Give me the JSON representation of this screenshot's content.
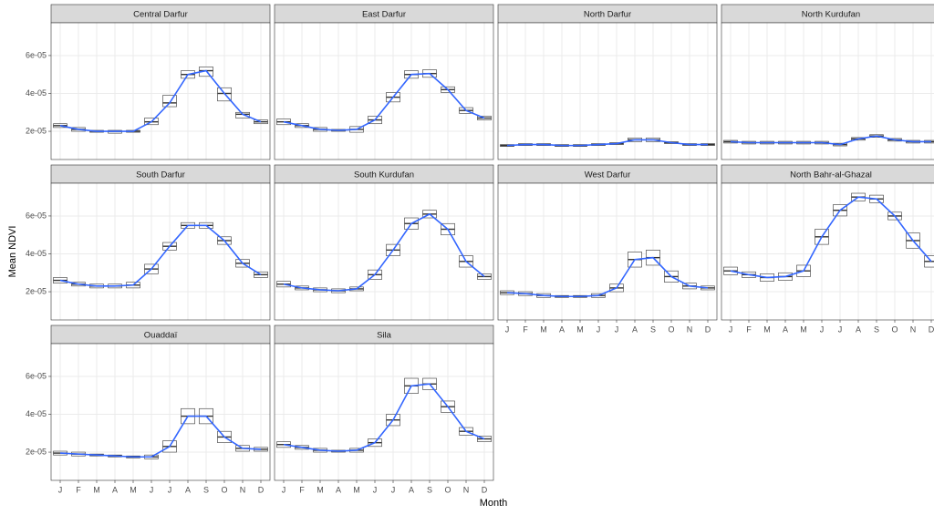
{
  "axis_labels": {
    "x": "Month",
    "y": "Mean NDVI"
  },
  "categories": [
    "J",
    "F",
    "M",
    "A",
    "M",
    "J",
    "J",
    "A",
    "S",
    "O",
    "N",
    "D"
  ],
  "ylim": [
    5.1e-06,
    7.73e-05
  ],
  "yticks": [
    {
      "value": 2e-05,
      "label": "2e-05"
    },
    {
      "value": 4e-05,
      "label": "4e-05"
    },
    {
      "value": 6e-05,
      "label": "6e-05"
    }
  ],
  "line_color": "#3366ff",
  "chart_data": [
    {
      "type": "box",
      "title": "Central Darfur",
      "median": [
        2.3e-05,
        2.1e-05,
        2e-05,
        2e-05,
        2e-05,
        2.5e-05,
        3.5e-05,
        5e-05,
        5.2e-05,
        4e-05,
        2.9e-05,
        2.5e-05
      ],
      "q1": [
        2.2e-05,
        2e-05,
        1.95e-05,
        1.9e-05,
        1.95e-05,
        2.35e-05,
        3.3e-05,
        4.8e-05,
        4.9e-05,
        3.6e-05,
        2.7e-05,
        2.4e-05
      ],
      "q3": [
        2.4e-05,
        2.2e-05,
        2.05e-05,
        2.05e-05,
        2.05e-05,
        2.7e-05,
        3.9e-05,
        5.2e-05,
        5.4e-05,
        4.3e-05,
        3e-05,
        2.6e-05
      ]
    },
    {
      "type": "box",
      "title": "East Darfur",
      "median": [
        2.5e-05,
        2.3e-05,
        2.1e-05,
        2.05e-05,
        2.1e-05,
        2.6e-05,
        3.8e-05,
        5e-05,
        5.05e-05,
        4.2e-05,
        3.1e-05,
        2.7e-05
      ],
      "q1": [
        2.35e-05,
        2.2e-05,
        2e-05,
        2e-05,
        1.95e-05,
        2.4e-05,
        3.55e-05,
        4.8e-05,
        4.85e-05,
        4.05e-05,
        2.95e-05,
        2.6e-05
      ],
      "q3": [
        2.65e-05,
        2.4e-05,
        2.2e-05,
        2.1e-05,
        2.25e-05,
        2.8e-05,
        4.05e-05,
        5.2e-05,
        5.25e-05,
        4.35e-05,
        3.25e-05,
        2.8e-05
      ]
    },
    {
      "type": "box",
      "title": "North Darfur",
      "median": [
        1.25e-05,
        1.3e-05,
        1.3e-05,
        1.25e-05,
        1.25e-05,
        1.3e-05,
        1.35e-05,
        1.55e-05,
        1.55e-05,
        1.4e-05,
        1.3e-05,
        1.3e-05
      ],
      "q1": [
        1.2e-05,
        1.25e-05,
        1.25e-05,
        1.2e-05,
        1.2e-05,
        1.25e-05,
        1.3e-05,
        1.45e-05,
        1.45e-05,
        1.35e-05,
        1.25e-05,
        1.25e-05
      ],
      "q3": [
        1.3e-05,
        1.35e-05,
        1.35e-05,
        1.3e-05,
        1.3e-05,
        1.35e-05,
        1.4e-05,
        1.65e-05,
        1.65e-05,
        1.45e-05,
        1.35e-05,
        1.35e-05
      ]
    },
    {
      "type": "box",
      "title": "North Kurdufan",
      "median": [
        1.45e-05,
        1.4e-05,
        1.4e-05,
        1.4e-05,
        1.4e-05,
        1.4e-05,
        1.3e-05,
        1.6e-05,
        1.75e-05,
        1.55e-05,
        1.45e-05,
        1.45e-05
      ],
      "q1": [
        1.38e-05,
        1.33e-05,
        1.33e-05,
        1.33e-05,
        1.33e-05,
        1.33e-05,
        1.23e-05,
        1.53e-05,
        1.68e-05,
        1.48e-05,
        1.38e-05,
        1.38e-05
      ],
      "q3": [
        1.52e-05,
        1.47e-05,
        1.47e-05,
        1.47e-05,
        1.47e-05,
        1.47e-05,
        1.37e-05,
        1.67e-05,
        1.82e-05,
        1.62e-05,
        1.52e-05,
        1.52e-05
      ]
    },
    {
      "type": "box",
      "title": "South Darfur",
      "median": [
        2.6e-05,
        2.4e-05,
        2.3e-05,
        2.3e-05,
        2.35e-05,
        3.2e-05,
        4.4e-05,
        5.5e-05,
        5.5e-05,
        4.7e-05,
        3.5e-05,
        2.9e-05
      ],
      "q1": [
        2.45e-05,
        2.3e-05,
        2.2e-05,
        2.2e-05,
        2.2e-05,
        2.95e-05,
        4.2e-05,
        5.35e-05,
        5.35e-05,
        4.5e-05,
        3.3e-05,
        2.75e-05
      ],
      "q3": [
        2.75e-05,
        2.5e-05,
        2.4e-05,
        2.4e-05,
        2.5e-05,
        3.45e-05,
        4.6e-05,
        5.65e-05,
        5.65e-05,
        4.9e-05,
        3.7e-05,
        3.05e-05
      ]
    },
    {
      "type": "box",
      "title": "South Kurdufan",
      "median": [
        2.4e-05,
        2.2e-05,
        2.1e-05,
        2.05e-05,
        2.15e-05,
        2.9e-05,
        4.2e-05,
        5.6e-05,
        6.1e-05,
        5.3e-05,
        3.6e-05,
        2.8e-05
      ],
      "q1": [
        2.25e-05,
        2.1e-05,
        2e-05,
        1.95e-05,
        2.05e-05,
        2.65e-05,
        3.9e-05,
        5.3e-05,
        5.9e-05,
        5e-05,
        3.3e-05,
        2.65e-05
      ],
      "q3": [
        2.55e-05,
        2.3e-05,
        2.2e-05,
        2.15e-05,
        2.25e-05,
        3.15e-05,
        4.5e-05,
        5.9e-05,
        6.3e-05,
        5.6e-05,
        3.9e-05,
        2.95e-05
      ]
    },
    {
      "type": "box",
      "title": "West Darfur",
      "median": [
        1.95e-05,
        1.9e-05,
        1.8e-05,
        1.75e-05,
        1.75e-05,
        1.8e-05,
        2.2e-05,
        3.7e-05,
        3.8e-05,
        2.8e-05,
        2.3e-05,
        2.2e-05
      ],
      "q1": [
        1.85e-05,
        1.8e-05,
        1.7e-05,
        1.7e-05,
        1.7e-05,
        1.7e-05,
        2e-05,
        3.3e-05,
        3.4e-05,
        2.5e-05,
        2.15e-05,
        2.1e-05
      ],
      "q3": [
        2.05e-05,
        2e-05,
        1.9e-05,
        1.8e-05,
        1.8e-05,
        1.9e-05,
        2.4e-05,
        4.1e-05,
        4.2e-05,
        3.1e-05,
        2.45e-05,
        2.3e-05
      ]
    },
    {
      "type": "box",
      "title": "North Bahr-al-Ghazal",
      "median": [
        3.1e-05,
        2.9e-05,
        2.75e-05,
        2.8e-05,
        3.1e-05,
        4.9e-05,
        6.3e-05,
        7e-05,
        6.9e-05,
        6e-05,
        4.7e-05,
        3.6e-05
      ],
      "q1": [
        2.9e-05,
        2.75e-05,
        2.55e-05,
        2.6e-05,
        2.8e-05,
        4.5e-05,
        6e-05,
        6.8e-05,
        6.7e-05,
        5.8e-05,
        4.3e-05,
        3.3e-05
      ],
      "q3": [
        3.3e-05,
        3.05e-05,
        2.95e-05,
        3e-05,
        3.4e-05,
        5.3e-05,
        6.6e-05,
        7.2e-05,
        7.1e-05,
        6.2e-05,
        5.1e-05,
        3.9e-05
      ]
    },
    {
      "type": "box",
      "title": "Ouaddaï",
      "median": [
        1.95e-05,
        1.9e-05,
        1.85e-05,
        1.8e-05,
        1.75e-05,
        1.75e-05,
        2.3e-05,
        3.9e-05,
        3.9e-05,
        2.8e-05,
        2.2e-05,
        2.15e-05
      ],
      "q1": [
        1.85e-05,
        1.8e-05,
        1.8e-05,
        1.75e-05,
        1.7e-05,
        1.65e-05,
        2e-05,
        3.5e-05,
        3.5e-05,
        2.5e-05,
        2.05e-05,
        2.05e-05
      ],
      "q3": [
        2.05e-05,
        2e-05,
        1.9e-05,
        1.85e-05,
        1.8e-05,
        1.85e-05,
        2.6e-05,
        4.3e-05,
        4.3e-05,
        3.1e-05,
        2.35e-05,
        2.25e-05
      ]
    },
    {
      "type": "box",
      "title": "Sila",
      "median": [
        2.4e-05,
        2.25e-05,
        2.1e-05,
        2.05e-05,
        2.1e-05,
        2.5e-05,
        3.7e-05,
        5.5e-05,
        5.6e-05,
        4.4e-05,
        3.1e-05,
        2.7e-05
      ],
      "q1": [
        2.25e-05,
        2.15e-05,
        2e-05,
        2e-05,
        2e-05,
        2.3e-05,
        3.4e-05,
        5.1e-05,
        5.3e-05,
        4.1e-05,
        2.9e-05,
        2.55e-05
      ],
      "q3": [
        2.55e-05,
        2.35e-05,
        2.2e-05,
        2.1e-05,
        2.2e-05,
        2.7e-05,
        4e-05,
        5.9e-05,
        5.9e-05,
        4.7e-05,
        3.3e-05,
        2.85e-05
      ]
    }
  ]
}
